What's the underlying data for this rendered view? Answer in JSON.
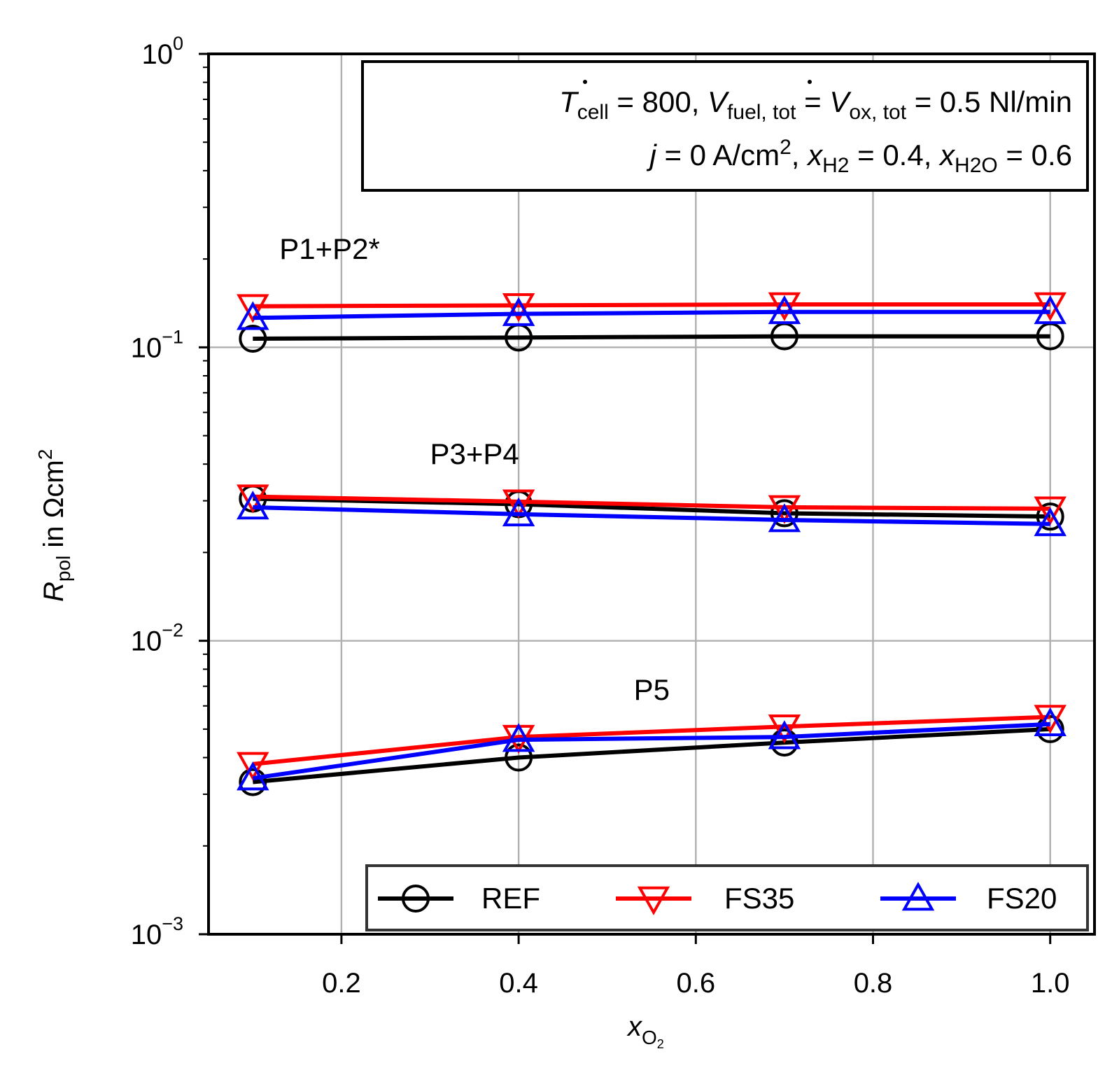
{
  "chart_data": {
    "type": "line",
    "yscale": "log",
    "xlabel_main": "x",
    "xlabel_sub": "O",
    "xlabel_subsub": "2",
    "ylabel_main": "R",
    "ylabel_sub": "pol",
    "ylabel_rest": " in Ωcm",
    "ylabel_sup": "2",
    "xlim": [
      0.05,
      1.05
    ],
    "ylim": [
      0.001,
      1
    ],
    "grid": true,
    "xticks": [
      {
        "value": 0.2,
        "label": "0.2"
      },
      {
        "value": 0.4,
        "label": "0.4"
      },
      {
        "value": 0.6,
        "label": "0.6"
      },
      {
        "value": 0.8,
        "label": "0.8"
      },
      {
        "value": 1.0,
        "label": "1.0"
      }
    ],
    "yticks": [
      {
        "value": 0.001,
        "base": "10",
        "exp": "−3"
      },
      {
        "value": 0.01,
        "base": "10",
        "exp": "−2"
      },
      {
        "value": 0.1,
        "base": "10",
        "exp": "−1"
      },
      {
        "value": 1,
        "base": "10",
        "exp": "0"
      }
    ],
    "x": [
      0.1,
      0.4,
      0.7,
      1.0
    ],
    "series": [
      {
        "name": "REF",
        "group": "P1+P2*",
        "color": "#000000",
        "marker": "circle",
        "values": [
          0.107,
          0.108,
          0.109,
          0.109
        ]
      },
      {
        "name": "FS35",
        "group": "P1+P2*",
        "color": "#ff0000",
        "marker": "triangle-down",
        "values": [
          0.138,
          0.139,
          0.14,
          0.14
        ]
      },
      {
        "name": "FS20",
        "group": "P1+P2*",
        "color": "#0000ff",
        "marker": "triangle-up",
        "values": [
          0.126,
          0.13,
          0.132,
          0.132
        ]
      },
      {
        "name": "REF",
        "group": "P3+P4",
        "color": "#000000",
        "marker": "circle",
        "values": [
          0.0305,
          0.0292,
          0.0272,
          0.0265
        ]
      },
      {
        "name": "FS35",
        "group": "P3+P4",
        "color": "#ff0000",
        "marker": "triangle-down",
        "values": [
          0.031,
          0.0298,
          0.0285,
          0.0282
        ]
      },
      {
        "name": "FS20",
        "group": "P3+P4",
        "color": "#0000ff",
        "marker": "triangle-up",
        "values": [
          0.0285,
          0.027,
          0.0258,
          0.025
        ]
      },
      {
        "name": "REF",
        "group": "P5",
        "color": "#000000",
        "marker": "circle",
        "values": [
          0.0033,
          0.004,
          0.0045,
          0.005
        ]
      },
      {
        "name": "FS35",
        "group": "P5",
        "color": "#ff0000",
        "marker": "triangle-down",
        "values": [
          0.0038,
          0.0047,
          0.0051,
          0.0055
        ]
      },
      {
        "name": "FS20",
        "group": "P5",
        "color": "#0000ff",
        "marker": "triangle-up",
        "values": [
          0.0034,
          0.0046,
          0.0047,
          0.0052
        ]
      }
    ],
    "annotations": [
      {
        "text": "P1+P2*",
        "x": 0.13,
        "y": 0.2
      },
      {
        "text": "P3+P4",
        "x": 0.3,
        "y": 0.04
      },
      {
        "text": "P5",
        "x": 0.53,
        "y": 0.0063
      }
    ],
    "legend": {
      "placement": "lower-right",
      "entries": [
        {
          "label": "REF",
          "color": "#000000",
          "marker": "circle"
        },
        {
          "label": "FS35",
          "color": "#ff0000",
          "marker": "triangle-down"
        },
        {
          "label": "FS20",
          "color": "#0000ff",
          "marker": "triangle-up"
        }
      ]
    },
    "info_box": {
      "placement": "top-right",
      "line1": {
        "t": "T",
        "t_sub": "cell",
        "eq1": " = 800, ",
        "v1": "V",
        "v1_sub": "fuel, tot",
        "eq2": " = ",
        "v2": "V",
        "v2_sub": "ox, tot",
        "eq3": " = 0.5 Nl/min"
      },
      "line2": {
        "j": "j",
        "eq1": " = 0 A/cm",
        "sup": "2",
        "eq2": ", ",
        "x1": "x",
        "x1_sub": "H2",
        "eq3": " = 0.4, ",
        "x2": "x",
        "x2_sub": "H2O",
        "eq4": " = 0.6"
      }
    }
  }
}
